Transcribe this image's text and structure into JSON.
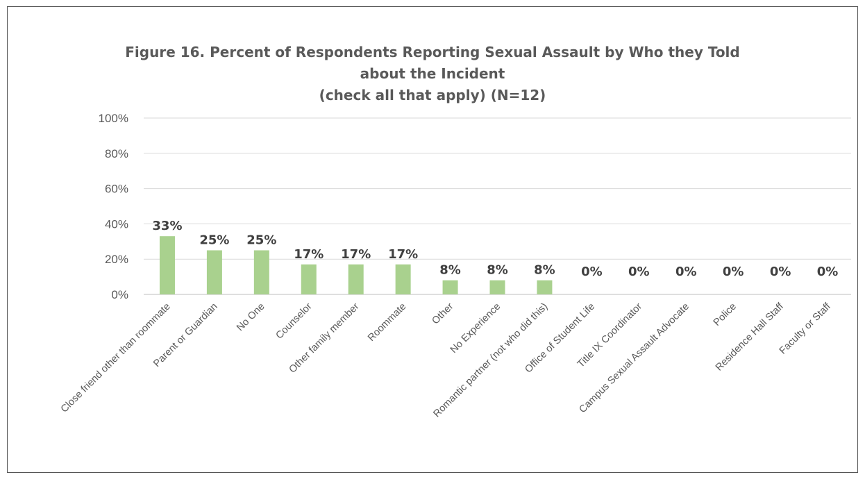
{
  "chart_data": {
    "type": "bar",
    "title_lines": [
      "Figure 16. Percent of Respondents Reporting Sexual Assault by Who they Told",
      "about the Incident",
      "(check all that apply) (N=12)"
    ],
    "xlabel": "",
    "ylabel": "",
    "ylim": [
      0,
      100
    ],
    "y_ticks": [
      0,
      20,
      40,
      60,
      80,
      100
    ],
    "y_tick_labels": [
      "0%",
      "20%",
      "40%",
      "60%",
      "80%",
      "100%"
    ],
    "grid": true,
    "legend": "none",
    "bar_color": "#a9d18e",
    "categories": [
      "Close friend other than roommate",
      "Parent or Guardian",
      "No One",
      "Counselor",
      "Other family member",
      "Roommate",
      "Other",
      "No Experience",
      "Romantic partner (not who did this)",
      "Office of Student Life",
      "Title IX Coordinator",
      "Campus Sexual Assault Advocate",
      "Police",
      "Residence Hall Staff",
      "Faculty or Staff"
    ],
    "values": [
      33,
      25,
      25,
      17,
      17,
      17,
      8,
      8,
      8,
      0,
      0,
      0,
      0,
      0,
      0
    ],
    "value_labels": [
      "33%",
      "25%",
      "25%",
      "17%",
      "17%",
      "17%",
      "8%",
      "8%",
      "8%",
      "0%",
      "0%",
      "0%",
      "0%",
      "0%",
      "0%"
    ]
  }
}
